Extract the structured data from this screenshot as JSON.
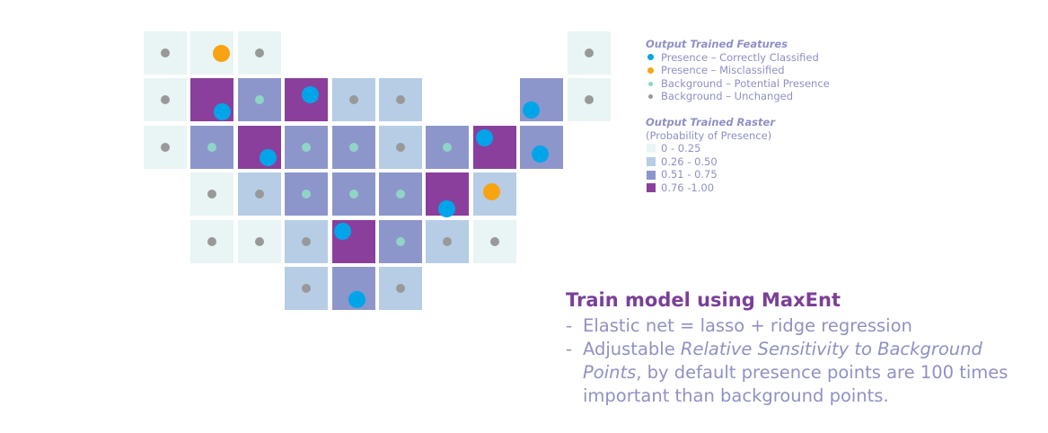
{
  "legend": {
    "features_title": "Output Trained Features",
    "features": [
      {
        "label": "Presence – Correctly Classified",
        "color": "#00a5e9",
        "size": "big"
      },
      {
        "label": "Presence – Misclassified",
        "color": "#f8a412",
        "size": "big"
      },
      {
        "label": "Background – Potential Presence",
        "color": "#8fd5c6",
        "size": "small"
      },
      {
        "label": "Background – Unchanged",
        "color": "#999999",
        "size": "small"
      }
    ],
    "raster_title": "Output Trained Raster",
    "raster_subtitle": "(Probability of Presence)",
    "raster_classes": [
      {
        "label": "0 - 0.25",
        "color": "#e9f4f5"
      },
      {
        "label": "0.26 - 0.50",
        "color": "#b6cde5"
      },
      {
        "label": "0.51 - 0.75",
        "color": "#8d96cb"
      },
      {
        "label": "0.76 -1.00",
        "color": "#8a3f9c"
      }
    ]
  },
  "grid": [
    {
      "row": 0,
      "col": 0,
      "class": 0,
      "point": "unchanged"
    },
    {
      "row": 0,
      "col": 1,
      "class": 0,
      "point": "misclassified"
    },
    {
      "row": 0,
      "col": 2,
      "class": 0,
      "point": "unchanged"
    },
    {
      "row": 0,
      "col": 9,
      "class": 0,
      "point": "unchanged"
    },
    {
      "row": 1,
      "col": 0,
      "class": 0,
      "point": "unchanged"
    },
    {
      "row": 1,
      "col": 1,
      "class": 3,
      "point": "correct"
    },
    {
      "row": 1,
      "col": 2,
      "class": 2,
      "point": "potential"
    },
    {
      "row": 1,
      "col": 3,
      "class": 3,
      "point": "correct"
    },
    {
      "row": 1,
      "col": 4,
      "class": 1,
      "point": "unchanged"
    },
    {
      "row": 1,
      "col": 5,
      "class": 1,
      "point": "unchanged"
    },
    {
      "row": 1,
      "col": 8,
      "class": 2,
      "point": "correct"
    },
    {
      "row": 1,
      "col": 9,
      "class": 0,
      "point": "unchanged"
    },
    {
      "row": 2,
      "col": 0,
      "class": 0,
      "point": "unchanged"
    },
    {
      "row": 2,
      "col": 1,
      "class": 2,
      "point": "potential"
    },
    {
      "row": 2,
      "col": 2,
      "class": 3,
      "point": "correct"
    },
    {
      "row": 2,
      "col": 3,
      "class": 2,
      "point": "potential"
    },
    {
      "row": 2,
      "col": 4,
      "class": 2,
      "point": "potential"
    },
    {
      "row": 2,
      "col": 5,
      "class": 1,
      "point": "unchanged"
    },
    {
      "row": 2,
      "col": 6,
      "class": 2,
      "point": "potential"
    },
    {
      "row": 2,
      "col": 7,
      "class": 3,
      "point": "correct"
    },
    {
      "row": 2,
      "col": 8,
      "class": 2,
      "point": "correct"
    },
    {
      "row": 3,
      "col": 1,
      "class": 0,
      "point": "unchanged"
    },
    {
      "row": 3,
      "col": 2,
      "class": 1,
      "point": "unchanged"
    },
    {
      "row": 3,
      "col": 3,
      "class": 2,
      "point": "potential"
    },
    {
      "row": 3,
      "col": 4,
      "class": 2,
      "point": "potential"
    },
    {
      "row": 3,
      "col": 5,
      "class": 2,
      "point": "potential"
    },
    {
      "row": 3,
      "col": 6,
      "class": 3,
      "point": "correct"
    },
    {
      "row": 3,
      "col": 7,
      "class": 1,
      "point": "misclassified"
    },
    {
      "row": 4,
      "col": 1,
      "class": 0,
      "point": "unchanged"
    },
    {
      "row": 4,
      "col": 2,
      "class": 0,
      "point": "unchanged"
    },
    {
      "row": 4,
      "col": 3,
      "class": 1,
      "point": "unchanged"
    },
    {
      "row": 4,
      "col": 4,
      "class": 3,
      "point": "correct"
    },
    {
      "row": 4,
      "col": 5,
      "class": 2,
      "point": "potential"
    },
    {
      "row": 4,
      "col": 6,
      "class": 1,
      "point": "unchanged"
    },
    {
      "row": 4,
      "col": 7,
      "class": 0,
      "point": "unchanged"
    },
    {
      "row": 5,
      "col": 3,
      "class": 1,
      "point": "unchanged"
    },
    {
      "row": 5,
      "col": 4,
      "class": 2,
      "point": "correct"
    },
    {
      "row": 5,
      "col": 5,
      "class": 1,
      "point": "unchanged"
    }
  ],
  "caption": {
    "title": "Train model using MaxEnt",
    "bullet_dash": "-",
    "bullet1": "Elastic net = lasso + ridge regression",
    "bullet2_prefix": "Adjustable ",
    "bullet2_italic": "Relative Sensitivity to Background Points",
    "bullet2_suffix": ", by default presence points are 100 times important than background points."
  }
}
